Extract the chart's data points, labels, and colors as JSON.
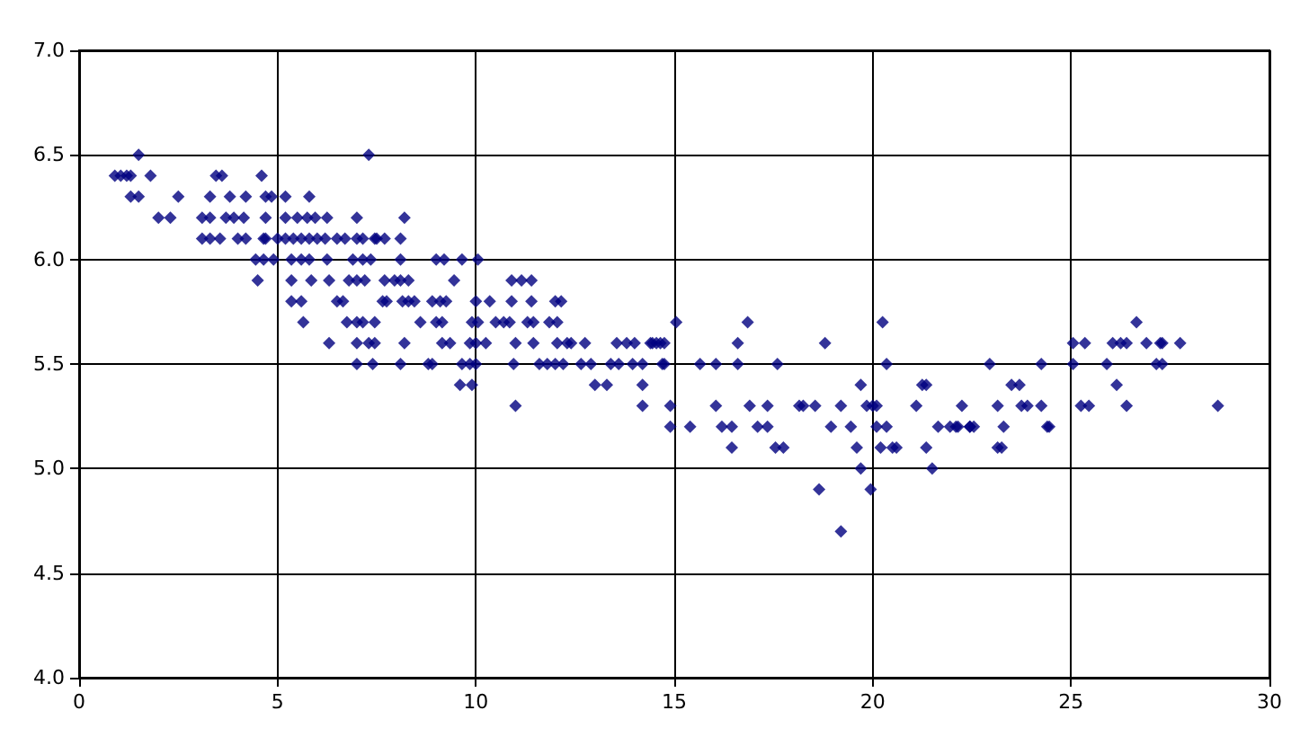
{
  "chart_data": {
    "type": "scatter",
    "marker": "diamond",
    "grid": true,
    "xlim": [
      0,
      30
    ],
    "xticks": [
      0,
      5,
      10,
      15,
      20,
      25,
      30
    ],
    "ylim": [
      4,
      7
    ],
    "yticks": [
      {
        "value": 4,
        "label": "4.0"
      },
      {
        "value": 4.5,
        "label": "4.5"
      },
      {
        "value": 5,
        "label": "5.0"
      },
      {
        "value": 5.5,
        "label": "5.5"
      },
      {
        "value": 6,
        "label": "6.0"
      },
      {
        "value": 6.5,
        "label": "6.5"
      },
      {
        "value": 7,
        "label": "7.0"
      }
    ],
    "series": [
      {
        "color": "#000080",
        "x": [
          1.5,
          7.3,
          0.9,
          1.05,
          1.2,
          1.3,
          1.8,
          3.45,
          3.6,
          4.6,
          1.3,
          1.5,
          2.5,
          3.3,
          3.8,
          4.2,
          4.7,
          4.85,
          5.2,
          5.8,
          2.0,
          2.3,
          3.1,
          3.3,
          3.7,
          3.9,
          4.15,
          4.7,
          5.2,
          5.5,
          5.75,
          5.95,
          6.25,
          7.0,
          3.1,
          3.3,
          3.55,
          4.0,
          4.2,
          4.65,
          4.7,
          5.0,
          5.2,
          5.4,
          5.6,
          5.8,
          6.0,
          6.2,
          6.5,
          6.7,
          7.0,
          7.15,
          7.45,
          4.45,
          4.65,
          4.9,
          5.35,
          5.6,
          5.8,
          6.25,
          6.9,
          7.15,
          7.35,
          4.5,
          5.35,
          5.85,
          6.3,
          6.8,
          7.0,
          7.2,
          5.35,
          5.6,
          6.5,
          6.65,
          5.65,
          6.75,
          7.0,
          7.15,
          7.45,
          6.3,
          7.0,
          7.3,
          7.45,
          7.0,
          7.4,
          8.2,
          7.5,
          7.7,
          8.1,
          8.1,
          9.0,
          9.2,
          9.65,
          10.05,
          7.7,
          7.95,
          8.1,
          8.3,
          9.45,
          10.9,
          11.15,
          11.4,
          7.65,
          7.75,
          8.15,
          8.3,
          8.45,
          8.9,
          9.1,
          9.25,
          10.0,
          10.35,
          10.9,
          11.4,
          12.0,
          12.15,
          8.6,
          9.0,
          9.15,
          9.9,
          10.05,
          10.5,
          10.7,
          10.85,
          11.3,
          11.45,
          11.85,
          12.05,
          8.2,
          9.15,
          9.35,
          9.85,
          10.0,
          10.25,
          11.0,
          11.45,
          12.05,
          12.3,
          12.4,
          12.75,
          13.55,
          13.8,
          14.0,
          14.45,
          14.65,
          8.1,
          8.8,
          8.9,
          9.65,
          9.85,
          10.0,
          10.95,
          11.6,
          11.8,
          12.0,
          12.2,
          12.65,
          12.9,
          13.4,
          13.6,
          13.95,
          14.2,
          14.7,
          9.6,
          9.9,
          13.0,
          13.3,
          14.2,
          11.0,
          14.2,
          15.05,
          16.85,
          20.25,
          14.4,
          14.55,
          14.75,
          16.6,
          18.8,
          14.75,
          15.65,
          16.05,
          16.6,
          17.6,
          20.35,
          19.7,
          21.25,
          21.35,
          14.9,
          16.05,
          16.9,
          17.35,
          18.15,
          18.25,
          18.55,
          19.2,
          19.85,
          20.0,
          20.1,
          21.1,
          22.25,
          14.9,
          15.4,
          16.2,
          16.45,
          17.1,
          17.35,
          18.95,
          19.45,
          20.1,
          20.35,
          21.65,
          21.95,
          22.15,
          22.45,
          16.45,
          17.55,
          17.75,
          19.6,
          20.2,
          20.5,
          20.6,
          21.35,
          19.7,
          21.5,
          18.65,
          19.95,
          19.2,
          26.65,
          25.05,
          25.35,
          26.05,
          26.25,
          26.4,
          26.9,
          27.25,
          27.3,
          27.75,
          22.95,
          24.25,
          25.05,
          25.9,
          27.15,
          27.3,
          23.5,
          23.7,
          26.15,
          23.15,
          23.75,
          23.9,
          24.25,
          25.25,
          25.45,
          26.4,
          28.7,
          22.1,
          22.45,
          22.55,
          23.3,
          24.4,
          24.45,
          23.15,
          23.25
        ],
        "values": [
          6.5,
          6.5,
          6.4,
          6.4,
          6.4,
          6.4,
          6.4,
          6.4,
          6.4,
          6.4,
          6.3,
          6.3,
          6.3,
          6.3,
          6.3,
          6.3,
          6.3,
          6.3,
          6.3,
          6.3,
          6.2,
          6.2,
          6.2,
          6.2,
          6.2,
          6.2,
          6.2,
          6.2,
          6.2,
          6.2,
          6.2,
          6.2,
          6.2,
          6.2,
          6.1,
          6.1,
          6.1,
          6.1,
          6.1,
          6.1,
          6.1,
          6.1,
          6.1,
          6.1,
          6.1,
          6.1,
          6.1,
          6.1,
          6.1,
          6.1,
          6.1,
          6.1,
          6.1,
          6.0,
          6.0,
          6.0,
          6.0,
          6.0,
          6.0,
          6.0,
          6.0,
          6.0,
          6.0,
          5.9,
          5.9,
          5.9,
          5.9,
          5.9,
          5.9,
          5.9,
          5.8,
          5.8,
          5.8,
          5.8,
          5.7,
          5.7,
          5.7,
          5.7,
          5.7,
          5.6,
          5.6,
          5.6,
          5.6,
          5.5,
          5.5,
          6.2,
          6.1,
          6.1,
          6.1,
          6.0,
          6.0,
          6.0,
          6.0,
          6.0,
          5.9,
          5.9,
          5.9,
          5.9,
          5.9,
          5.9,
          5.9,
          5.9,
          5.8,
          5.8,
          5.8,
          5.8,
          5.8,
          5.8,
          5.8,
          5.8,
          5.8,
          5.8,
          5.8,
          5.8,
          5.8,
          5.8,
          5.7,
          5.7,
          5.7,
          5.7,
          5.7,
          5.7,
          5.7,
          5.7,
          5.7,
          5.7,
          5.7,
          5.7,
          5.6,
          5.6,
          5.6,
          5.6,
          5.6,
          5.6,
          5.6,
          5.6,
          5.6,
          5.6,
          5.6,
          5.6,
          5.6,
          5.6,
          5.6,
          5.6,
          5.6,
          5.5,
          5.5,
          5.5,
          5.5,
          5.5,
          5.5,
          5.5,
          5.5,
          5.5,
          5.5,
          5.5,
          5.5,
          5.5,
          5.5,
          5.5,
          5.5,
          5.5,
          5.5,
          5.4,
          5.4,
          5.4,
          5.4,
          5.4,
          5.3,
          5.3,
          5.7,
          5.7,
          5.7,
          5.6,
          5.6,
          5.6,
          5.6,
          5.6,
          5.5,
          5.5,
          5.5,
          5.5,
          5.5,
          5.5,
          5.4,
          5.4,
          5.4,
          5.3,
          5.3,
          5.3,
          5.3,
          5.3,
          5.3,
          5.3,
          5.3,
          5.3,
          5.3,
          5.3,
          5.3,
          5.3,
          5.2,
          5.2,
          5.2,
          5.2,
          5.2,
          5.2,
          5.2,
          5.2,
          5.2,
          5.2,
          5.2,
          5.2,
          5.2,
          5.2,
          5.1,
          5.1,
          5.1,
          5.1,
          5.1,
          5.1,
          5.1,
          5.1,
          5.0,
          5.0,
          4.9,
          4.9,
          4.7,
          5.7,
          5.6,
          5.6,
          5.6,
          5.6,
          5.6,
          5.6,
          5.6,
          5.6,
          5.6,
          5.5,
          5.5,
          5.5,
          5.5,
          5.5,
          5.5,
          5.4,
          5.4,
          5.4,
          5.3,
          5.3,
          5.3,
          5.3,
          5.3,
          5.3,
          5.3,
          5.3,
          5.2,
          5.2,
          5.2,
          5.2,
          5.2,
          5.2,
          5.1,
          5.1
        ]
      }
    ]
  }
}
